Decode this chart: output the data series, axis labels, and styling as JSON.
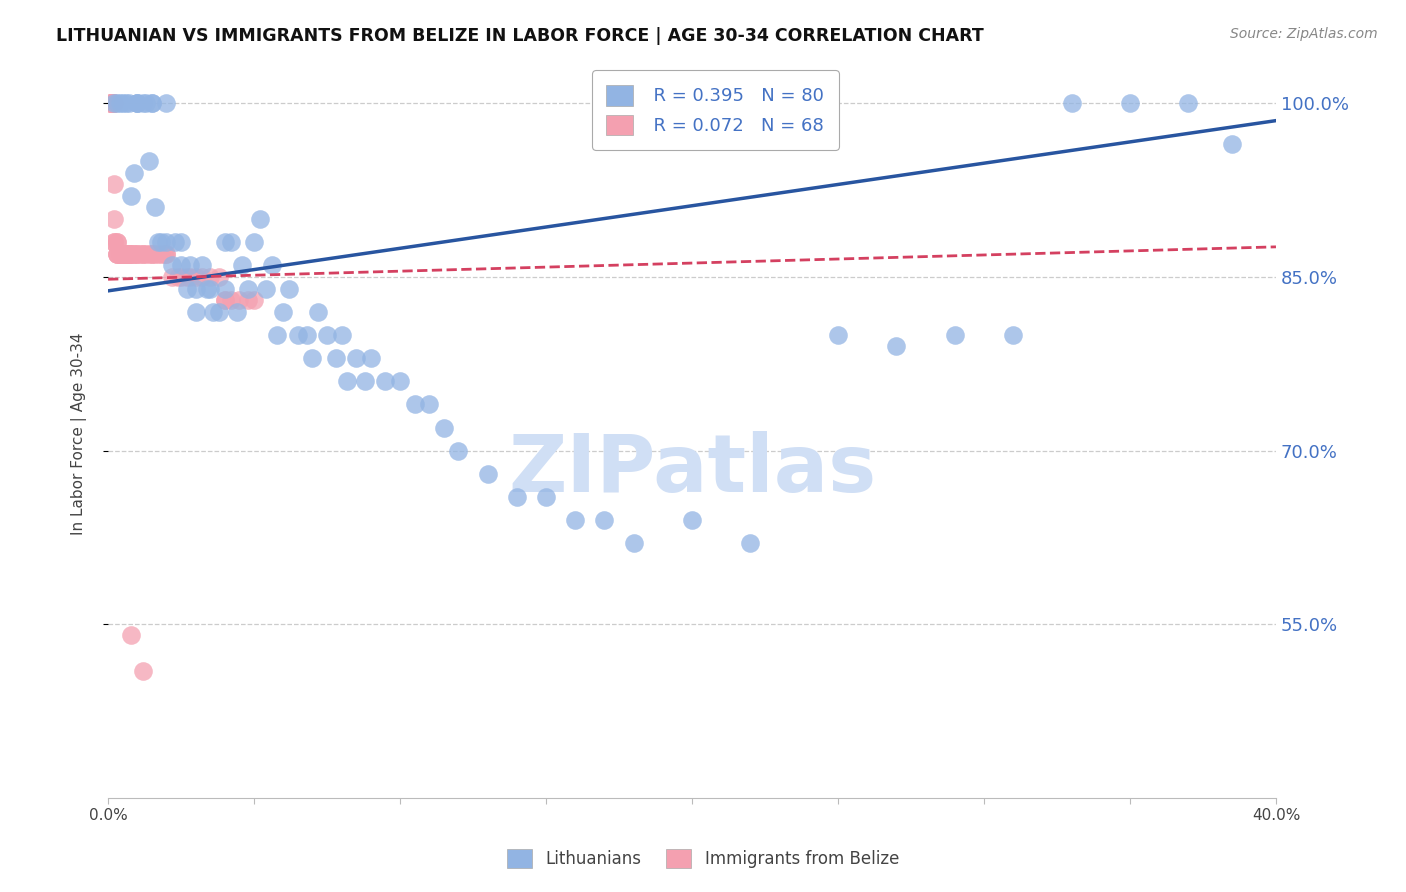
{
  "title": "LITHUANIAN VS IMMIGRANTS FROM BELIZE IN LABOR FORCE | AGE 30-34 CORRELATION CHART",
  "source": "Source: ZipAtlas.com",
  "ylabel": "In Labor Force | Age 30-34",
  "xlim": [
    0.0,
    0.4
  ],
  "ylim": [
    0.4,
    1.03
  ],
  "yticks": [
    0.55,
    0.7,
    0.85,
    1.0
  ],
  "xticks": [
    0.0,
    0.05,
    0.1,
    0.15,
    0.2,
    0.25,
    0.3,
    0.35,
    0.4
  ],
  "xtick_labels": [
    "0.0%",
    "",
    "",
    "",
    "",
    "",
    "",
    "",
    "40.0%"
  ],
  "ytick_labels": [
    "55.0%",
    "70.0%",
    "85.0%",
    "100.0%"
  ],
  "blue_color": "#92b4e3",
  "pink_color": "#f4a0b0",
  "blue_line_color": "#2855a0",
  "pink_line_color": "#d44060",
  "watermark_color": "#d0dff5",
  "legend_R_blue": "R = 0.395",
  "legend_N_blue": "N = 80",
  "legend_R_pink": "R = 0.072",
  "legend_N_pink": "N = 68",
  "legend_label_blue": "Lithuanians",
  "legend_label_pink": "Immigrants from Belize",
  "blue_trend_x0": 0.0,
  "blue_trend_x1": 0.4,
  "blue_trend_y0": 0.838,
  "blue_trend_y1": 0.985,
  "pink_trend_x0": 0.0,
  "pink_trend_x1": 0.4,
  "pink_trend_y0": 0.848,
  "pink_trend_y1": 0.876,
  "blue_scatter_x": [
    0.002,
    0.003,
    0.004,
    0.005,
    0.006,
    0.007,
    0.008,
    0.009,
    0.01,
    0.01,
    0.01,
    0.012,
    0.013,
    0.014,
    0.015,
    0.015,
    0.016,
    0.017,
    0.018,
    0.02,
    0.02,
    0.022,
    0.023,
    0.025,
    0.025,
    0.027,
    0.028,
    0.03,
    0.03,
    0.032,
    0.034,
    0.035,
    0.036,
    0.038,
    0.04,
    0.04,
    0.042,
    0.044,
    0.046,
    0.048,
    0.05,
    0.052,
    0.054,
    0.056,
    0.058,
    0.06,
    0.062,
    0.065,
    0.068,
    0.07,
    0.072,
    0.075,
    0.078,
    0.08,
    0.082,
    0.085,
    0.088,
    0.09,
    0.095,
    0.1,
    0.105,
    0.11,
    0.115,
    0.12,
    0.13,
    0.14,
    0.15,
    0.16,
    0.17,
    0.18,
    0.2,
    0.22,
    0.25,
    0.27,
    0.29,
    0.31,
    0.33,
    0.35,
    0.37,
    0.385
  ],
  "blue_scatter_y": [
    1.0,
    1.0,
    1.0,
    1.0,
    1.0,
    1.0,
    0.92,
    0.94,
    1.0,
    1.0,
    1.0,
    1.0,
    1.0,
    0.95,
    1.0,
    1.0,
    0.91,
    0.88,
    0.88,
    1.0,
    0.88,
    0.86,
    0.88,
    0.86,
    0.88,
    0.84,
    0.86,
    0.84,
    0.82,
    0.86,
    0.84,
    0.84,
    0.82,
    0.82,
    0.84,
    0.88,
    0.88,
    0.82,
    0.86,
    0.84,
    0.88,
    0.9,
    0.84,
    0.86,
    0.8,
    0.82,
    0.84,
    0.8,
    0.8,
    0.78,
    0.82,
    0.8,
    0.78,
    0.8,
    0.76,
    0.78,
    0.76,
    0.78,
    0.76,
    0.76,
    0.74,
    0.74,
    0.72,
    0.7,
    0.68,
    0.66,
    0.66,
    0.64,
    0.64,
    0.62,
    0.64,
    0.62,
    0.8,
    0.79,
    0.8,
    0.8,
    1.0,
    1.0,
    1.0,
    0.965
  ],
  "pink_scatter_x": [
    0.001,
    0.001,
    0.001,
    0.001,
    0.001,
    0.001,
    0.002,
    0.002,
    0.002,
    0.002,
    0.002,
    0.002,
    0.003,
    0.003,
    0.003,
    0.003,
    0.003,
    0.004,
    0.004,
    0.004,
    0.004,
    0.004,
    0.005,
    0.005,
    0.005,
    0.005,
    0.006,
    0.006,
    0.006,
    0.007,
    0.007,
    0.007,
    0.008,
    0.008,
    0.009,
    0.009,
    0.01,
    0.01,
    0.011,
    0.012,
    0.012,
    0.013,
    0.014,
    0.015,
    0.015,
    0.016,
    0.017,
    0.018,
    0.019,
    0.02,
    0.02,
    0.022,
    0.024,
    0.025,
    0.027,
    0.028,
    0.03,
    0.032,
    0.035,
    0.038,
    0.04,
    0.04,
    0.042,
    0.045,
    0.048,
    0.05,
    0.008,
    0.012
  ],
  "pink_scatter_y": [
    1.0,
    1.0,
    1.0,
    1.0,
    1.0,
    1.0,
    1.0,
    1.0,
    0.93,
    0.9,
    0.88,
    0.88,
    0.88,
    0.88,
    0.87,
    0.87,
    0.87,
    0.87,
    0.87,
    0.87,
    0.87,
    0.87,
    0.87,
    0.87,
    0.87,
    0.87,
    0.87,
    0.87,
    0.87,
    0.87,
    0.87,
    0.87,
    0.87,
    0.87,
    0.87,
    0.87,
    0.87,
    0.87,
    0.87,
    0.87,
    0.87,
    0.87,
    0.87,
    0.87,
    0.87,
    0.87,
    0.87,
    0.87,
    0.87,
    0.87,
    0.87,
    0.85,
    0.85,
    0.85,
    0.85,
    0.85,
    0.85,
    0.85,
    0.85,
    0.85,
    0.83,
    0.83,
    0.83,
    0.83,
    0.83,
    0.83,
    0.541,
    0.51
  ]
}
